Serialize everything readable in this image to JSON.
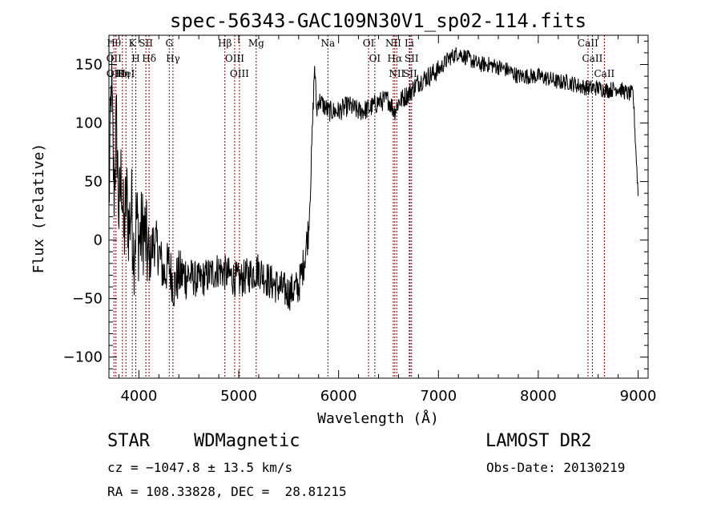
{
  "chart_data": {
    "type": "line",
    "title": "spec-56343-GAC109N30V1_sp02-114.fits",
    "xlabel": "Wavelength (Å)",
    "ylabel": "Flux (relative)",
    "xlim": [
      3700,
      9100
    ],
    "ylim": [
      -118,
      175
    ],
    "xticks": [
      4000,
      5000,
      6000,
      7000,
      8000,
      9000
    ],
    "xtick_labels": [
      "4000",
      "5000",
      "6000",
      "7000",
      "8000",
      "9000"
    ],
    "yticks": [
      -100,
      -50,
      0,
      50,
      100,
      150
    ],
    "ytick_labels": [
      "−100",
      "−50",
      "0",
      "50",
      "100",
      "150"
    ],
    "grid": false,
    "series": [
      {
        "color": "#000000",
        "x": [
          3700,
          3725,
          3750,
          3775,
          3800,
          3825,
          3850,
          3875,
          3900,
          3925,
          3950,
          3975,
          4000,
          4050,
          4100,
          4150,
          4200,
          4250,
          4300,
          4350,
          4400,
          4500,
          4600,
          4700,
          4800,
          4900,
          5000,
          5100,
          5200,
          5300,
          5400,
          5500,
          5600,
          5650,
          5700,
          5720,
          5740,
          5760,
          5780,
          5800,
          5850,
          5900,
          6000,
          6100,
          6200,
          6300,
          6400,
          6500,
          6560,
          6600,
          6700,
          6800,
          6900,
          7000,
          7100,
          7200,
          7300,
          7400,
          7500,
          7600,
          7700,
          7800,
          7900,
          8000,
          8100,
          8200,
          8300,
          8400,
          8500,
          8600,
          8700,
          8800,
          8900,
          8950,
          9000
        ],
        "y": [
          30,
          140,
          40,
          100,
          20,
          60,
          0,
          40,
          10,
          30,
          -10,
          20,
          0,
          10,
          -20,
          0,
          -10,
          -30,
          -20,
          -40,
          -30,
          -30,
          -35,
          -30,
          -25,
          -30,
          -35,
          -30,
          -25,
          -35,
          -40,
          -45,
          -40,
          -20,
          10,
          50,
          100,
          150,
          110,
          120,
          115,
          110,
          110,
          115,
          110,
          112,
          118,
          120,
          110,
          118,
          125,
          135,
          140,
          145,
          155,
          160,
          155,
          150,
          150,
          148,
          145,
          140,
          140,
          140,
          138,
          135,
          135,
          132,
          130,
          130,
          128,
          130,
          125,
          125,
          40
        ]
      }
    ],
    "line_markers": [
      {
        "x": 3750,
        "labels": [
          "Hθ",
          "OII"
        ]
      },
      {
        "x": 3770,
        "labels": [
          "OIII"
        ]
      },
      {
        "x": 3835,
        "labels": [
          "Hη"
        ]
      },
      {
        "x": 3870,
        "labels": [
          "HeI"
        ]
      },
      {
        "x": 3934,
        "labels": [
          "K"
        ]
      },
      {
        "x": 3969,
        "labels": [
          "H"
        ]
      },
      {
        "x": 4070,
        "labels": [
          "SII"
        ]
      },
      {
        "x": 4102,
        "labels": [
          "Hδ"
        ]
      },
      {
        "x": 4304,
        "labels": [
          "G"
        ]
      },
      {
        "x": 4341,
        "labels": [
          "Hγ"
        ]
      },
      {
        "x": 4861,
        "labels": [
          "Hβ"
        ]
      },
      {
        "x": 4959,
        "labels": [
          "OIII"
        ]
      },
      {
        "x": 5007,
        "labels": [
          "OIII"
        ]
      },
      {
        "x": 5175,
        "labels": [
          "Mg"
        ]
      },
      {
        "x": 5893,
        "labels": [
          "Na"
        ]
      },
      {
        "x": 6300,
        "labels": [
          "OI"
        ]
      },
      {
        "x": 6363,
        "labels": [
          "OI"
        ]
      },
      {
        "x": 6548,
        "labels": [
          "NII"
        ]
      },
      {
        "x": 6563,
        "labels": [
          "Hα"
        ]
      },
      {
        "x": 6583,
        "labels": [
          "NII"
        ]
      },
      {
        "x": 6708,
        "labels": [
          "Li"
        ]
      },
      {
        "x": 6716,
        "labels": [
          "SII"
        ]
      },
      {
        "x": 6731,
        "labels": [
          "SII"
        ]
      },
      {
        "x": 8498,
        "labels": [
          "CaII"
        ]
      },
      {
        "x": 8542,
        "labels": [
          "CaII"
        ]
      },
      {
        "x": 8662,
        "labels": [
          "CaII"
        ]
      }
    ],
    "marker_color": "#8b0000"
  },
  "info": {
    "class": "STAR",
    "subclass": "WDMagnetic",
    "survey": "LAMOST DR2",
    "cz": "cz = −1047.8 ± 13.5 km/s",
    "obs_date": "Obs-Date: 20130219",
    "coords": "RA = 108.33828, DEC =  28.81215"
  }
}
